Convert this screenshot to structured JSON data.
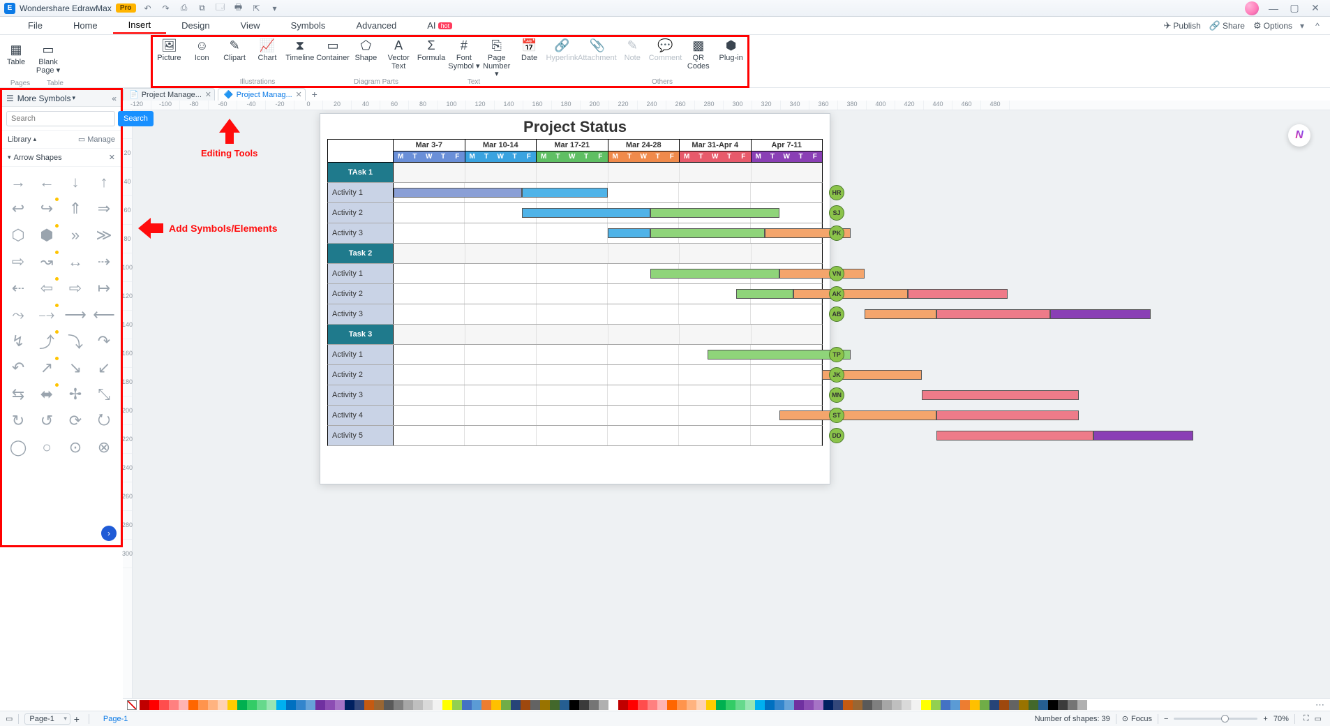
{
  "app": {
    "title": "Wondershare EdrawMax",
    "badge": "Pro"
  },
  "win": {
    "min": "—",
    "max": "▢",
    "close": "✕"
  },
  "qat": [
    "↶",
    "↷",
    "⎙",
    "⧉",
    "🗔",
    "🖶",
    "⇱",
    "▾"
  ],
  "menu": {
    "items": [
      "File",
      "Home",
      "Insert",
      "Design",
      "View",
      "Symbols",
      "Advanced"
    ],
    "ai": "AI",
    "hot": "hot",
    "active": 2
  },
  "menuRight": [
    {
      "icon": "✈",
      "label": "Publish"
    },
    {
      "icon": "🔗",
      "label": "Share"
    },
    {
      "icon": "⚙",
      "label": "Options"
    }
  ],
  "ribbonPre": [
    {
      "icon": "▭",
      "label": "Blank\nPage ▾",
      "name": "blank-page"
    },
    {
      "icon": "▦",
      "label": "Table",
      "name": "table"
    }
  ],
  "ribbon": [
    {
      "icon": "🖼",
      "label": "Picture",
      "name": "picture"
    },
    {
      "icon": "☺",
      "label": "Icon",
      "name": "icon"
    },
    {
      "icon": "✎",
      "label": "Clipart",
      "name": "clipart"
    },
    {
      "icon": "📈",
      "label": "Chart",
      "name": "chart"
    },
    {
      "icon": "⧗",
      "label": "Timeline",
      "name": "timeline"
    },
    {
      "icon": "▭",
      "label": "Container",
      "name": "container"
    },
    {
      "icon": "⬠",
      "label": "Shape",
      "name": "shape"
    },
    {
      "icon": "A",
      "label": "Vector\nText",
      "name": "vector-text"
    },
    {
      "icon": "Σ",
      "label": "Formula",
      "name": "formula"
    },
    {
      "icon": "#",
      "label": "Font\nSymbol ▾",
      "name": "font-symbol"
    },
    {
      "icon": "⎘",
      "label": "Page\nNumber ▾",
      "name": "page-number"
    },
    {
      "icon": "📅",
      "label": "Date",
      "name": "date"
    },
    {
      "icon": "🔗",
      "label": "Hyperlink",
      "name": "hyperlink",
      "dim": true
    },
    {
      "icon": "📎",
      "label": "Attachment",
      "name": "attachment",
      "dim": true
    },
    {
      "icon": "✎",
      "label": "Note",
      "name": "note",
      "dim": true
    },
    {
      "icon": "💬",
      "label": "Comment",
      "name": "comment",
      "dim": true
    },
    {
      "icon": "▩",
      "label": "QR\nCodes",
      "name": "qr-codes"
    },
    {
      "icon": "⬢",
      "label": "Plug-in",
      "name": "plugin"
    }
  ],
  "ribbonGroups": {
    "pages": "Pages",
    "table": "Table",
    "ill": "Illustrations",
    "dp": "Diagram Parts",
    "text": "Text",
    "others": "Others"
  },
  "sidebar": {
    "title": "More Symbols",
    "search_ph": "Search",
    "search_btn": "Search",
    "library": "Library",
    "manage": "Manage",
    "section": "Arrow Shapes",
    "shapes": [
      "→",
      "←",
      "↓",
      "↑",
      "↩",
      "↪",
      "⇑",
      "⇒",
      "⬡",
      "⬢",
      "»",
      "≫",
      "⇨",
      "↝",
      "↔",
      "⇢",
      "⇠",
      "⇦",
      "⇨",
      "↦",
      "⤳",
      "⤍",
      "⟶",
      "⟵",
      "↯",
      "⤴",
      "⤵",
      "↷",
      "↶",
      "↗",
      "↘",
      "↙",
      "⇆",
      "⬌",
      "✢",
      "⤡",
      "↻",
      "↺",
      "⟳",
      "⭮",
      "◯",
      "○",
      "⊙",
      "⊗"
    ]
  },
  "tabs": [
    {
      "label": "Project Manage...",
      "active": false
    },
    {
      "label": "Project Manag...",
      "active": true
    }
  ],
  "rulerH": [
    "-120",
    "-100",
    "-80",
    "-60",
    "-40",
    "-20",
    "0",
    "20",
    "40",
    "60",
    "80",
    "100",
    "120",
    "140",
    "160",
    "180",
    "200",
    "220",
    "240",
    "260",
    "280",
    "300",
    "320",
    "340",
    "360",
    "380",
    "400",
    "420",
    "440",
    "460",
    "480"
  ],
  "rulerV": [
    "0",
    "20",
    "40",
    "60",
    "80",
    "100",
    "120",
    "140",
    "160",
    "180",
    "200",
    "220",
    "240",
    "260",
    "280",
    "300"
  ],
  "annotUp": "Editing Tools",
  "annotLeft": "Add Symbols/Elements",
  "chart": {
    "title": "Project Status",
    "weeks": [
      {
        "label": "Mar 3-7",
        "hdr": "#6a8fd8"
      },
      {
        "label": "Mar 10-14",
        "hdr": "#3aa3e0"
      },
      {
        "label": "Mar 17-21",
        "hdr": "#5fbf63"
      },
      {
        "label": "Mar 24-28",
        "hdr": "#f08a4b"
      },
      {
        "label": "Mar 31-Apr 4",
        "hdr": "#e85a6b"
      },
      {
        "label": "Apr 7-11",
        "hdr": "#8a3fb5"
      }
    ],
    "days": [
      "M",
      "T",
      "W",
      "T",
      "F"
    ],
    "rows": [
      {
        "type": "task",
        "label": "TAsk 1"
      },
      {
        "type": "act",
        "label": "Activity 1",
        "person": "HR",
        "pc": "#8bc34a",
        "bars": [
          {
            "s": 0,
            "w": 9,
            "c": "#8a9fd6"
          },
          {
            "s": 9,
            "w": 6,
            "c": "#4fb3e8"
          }
        ]
      },
      {
        "type": "act",
        "label": "Activity 2",
        "person": "SJ",
        "pc": "#8bc34a",
        "bars": [
          {
            "s": 9,
            "w": 9,
            "c": "#4fb3e8"
          },
          {
            "s": 18,
            "w": 9,
            "c": "#8fd47a"
          }
        ]
      },
      {
        "type": "act",
        "label": "Activity 3",
        "person": "PK",
        "pc": "#8bc34a",
        "bars": [
          {
            "s": 15,
            "w": 3,
            "c": "#4fb3e8"
          },
          {
            "s": 18,
            "w": 8,
            "c": "#8fd47a"
          },
          {
            "s": 26,
            "w": 6,
            "c": "#f4a56c"
          }
        ]
      },
      {
        "type": "task",
        "label": "Task 2"
      },
      {
        "type": "act",
        "label": "Activity 1",
        "person": "VN",
        "pc": "#8bc34a",
        "bars": [
          {
            "s": 18,
            "w": 9,
            "c": "#8fd47a"
          },
          {
            "s": 27,
            "w": 6,
            "c": "#f4a56c"
          }
        ]
      },
      {
        "type": "act",
        "label": "Activity 2",
        "person": "AK",
        "pc": "#8bc34a",
        "bars": [
          {
            "s": 24,
            "w": 4,
            "c": "#8fd47a"
          },
          {
            "s": 28,
            "w": 8,
            "c": "#f4a56c"
          },
          {
            "s": 36,
            "w": 7,
            "c": "#ee7b89"
          }
        ]
      },
      {
        "type": "act",
        "label": "Activity 3",
        "person": "AB",
        "pc": "#8bc34a",
        "bars": [
          {
            "s": 33,
            "w": 5,
            "c": "#f4a56c"
          },
          {
            "s": 38,
            "w": 8,
            "c": "#ee7b89"
          },
          {
            "s": 46,
            "w": 7,
            "c": "#8a3fb5"
          }
        ]
      },
      {
        "type": "task",
        "label": "Task 3"
      },
      {
        "type": "act",
        "label": "Activity 1",
        "person": "TP",
        "pc": "#8bc34a",
        "bars": [
          {
            "s": 22,
            "w": 10,
            "c": "#8fd47a"
          }
        ]
      },
      {
        "type": "act",
        "label": "Activity 2",
        "person": "JK",
        "pc": "#8bc34a",
        "bars": [
          {
            "s": 30,
            "w": 7,
            "c": "#f4a56c"
          }
        ]
      },
      {
        "type": "act",
        "label": "Activity 3",
        "person": "MN",
        "pc": "#8bc34a",
        "bars": [
          {
            "s": 37,
            "w": 11,
            "c": "#ee7b89"
          }
        ]
      },
      {
        "type": "act",
        "label": "Activity 4",
        "person": "ST",
        "pc": "#8bc34a",
        "bars": [
          {
            "s": 27,
            "w": 11,
            "c": "#f4a56c"
          },
          {
            "s": 38,
            "w": 10,
            "c": "#ee7b89"
          }
        ]
      },
      {
        "type": "act",
        "label": "Activity 5",
        "person": "DD",
        "pc": "#8bc34a",
        "bars": [
          {
            "s": 38,
            "w": 11,
            "c": "#ee7b89"
          },
          {
            "s": 49,
            "w": 7,
            "c": "#8a3fb5"
          }
        ]
      }
    ],
    "totalDays": 30
  },
  "palette": [
    "#c00000",
    "#ff0000",
    "#ff4d4d",
    "#ff8080",
    "#ffb3b3",
    "#ff6600",
    "#ff944d",
    "#ffb380",
    "#ffd1b3",
    "#ffcc00",
    "#00b050",
    "#33cc66",
    "#66d98c",
    "#99e6b3",
    "#00b0f0",
    "#0070c0",
    "#3385cc",
    "#66a3d9",
    "#7030a0",
    "#8c4db3",
    "#a673c6",
    "#002060",
    "#33477a",
    "#c55a11",
    "#996633",
    "#595959",
    "#7f7f7f",
    "#a6a6a6",
    "#bfbfbf",
    "#d9d9d9",
    "#f2f2f2",
    "#ffff00",
    "#92d050",
    "#4472c4",
    "#5b9bd5",
    "#ed7d31",
    "#ffc000",
    "#70ad47",
    "#264478",
    "#9e480e",
    "#636363",
    "#997300",
    "#43682b",
    "#255e91",
    "#000000",
    "#3b3b3b",
    "#757575",
    "#b0b0b0",
    "#ffffff"
  ],
  "status": {
    "page": "Page-1",
    "pageLink": "Page-1",
    "shapes": "Number of shapes: 39",
    "focus": "Focus",
    "zoom": "70%"
  }
}
